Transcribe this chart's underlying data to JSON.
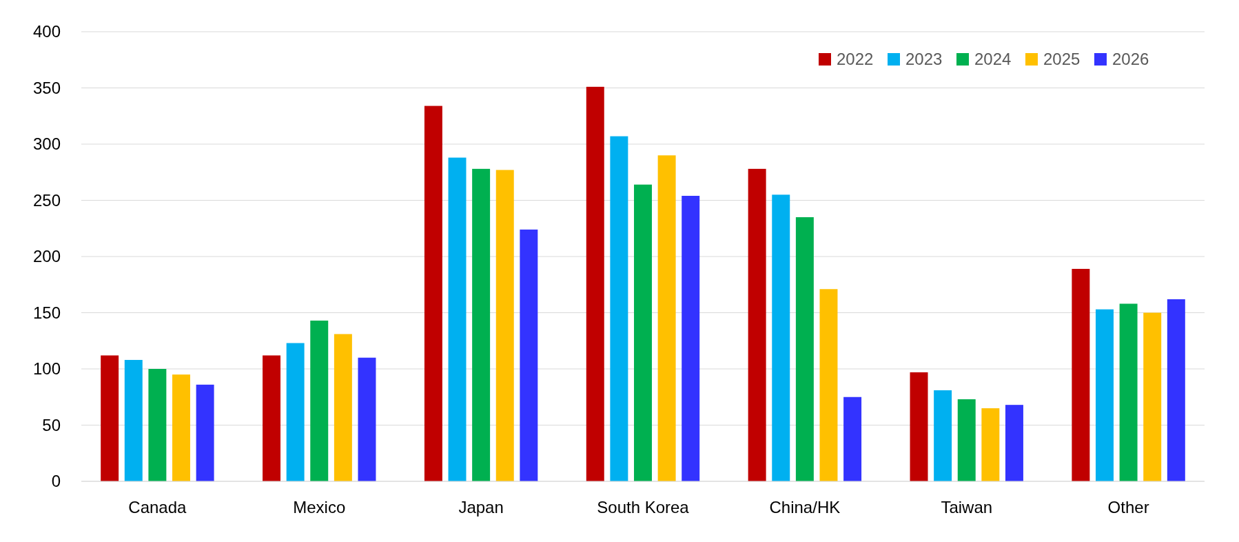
{
  "chart_data": {
    "type": "bar",
    "categories": [
      "Canada",
      "Mexico",
      "Japan",
      "South Korea",
      "China/HK",
      "Taiwan",
      "Other"
    ],
    "series": [
      {
        "name": "2022",
        "color": "#c00000",
        "values": [
          112,
          112,
          334,
          351,
          278,
          97,
          189
        ]
      },
      {
        "name": "2023",
        "color": "#00b0f0",
        "values": [
          108,
          123,
          288,
          307,
          255,
          81,
          153
        ]
      },
      {
        "name": "2024",
        "color": "#00b050",
        "values": [
          100,
          143,
          278,
          264,
          235,
          73,
          158
        ]
      },
      {
        "name": "2025",
        "color": "#ffc000",
        "values": [
          95,
          131,
          277,
          290,
          171,
          65,
          150
        ]
      },
      {
        "name": "2026",
        "color": "#3333ff",
        "values": [
          86,
          110,
          224,
          254,
          75,
          68,
          162
        ]
      }
    ],
    "ylim": [
      0,
      400
    ],
    "yticks": [
      0,
      50,
      100,
      150,
      200,
      250,
      300,
      350,
      400
    ],
    "grid": "y",
    "legend": "top right"
  }
}
